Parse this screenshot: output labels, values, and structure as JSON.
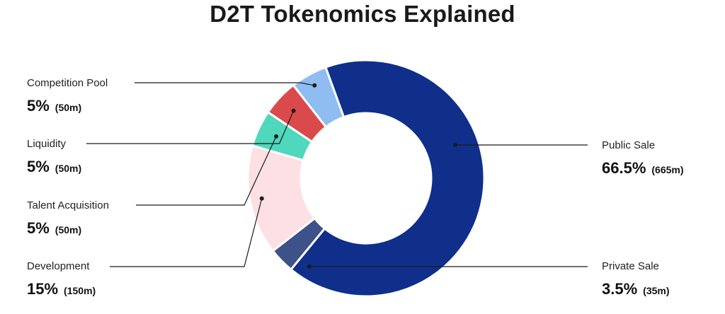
{
  "title": "D2T Tokenomics Explained",
  "chart_data": {
    "type": "pie",
    "variant": "donut",
    "title": "D2T Tokenomics Explained",
    "categories": [
      "Public Sale",
      "Private Sale",
      "Development",
      "Talent Acquisition",
      "Liquidity",
      "Competition Pool"
    ],
    "values": [
      66.5,
      3.5,
      15,
      5,
      5,
      5
    ],
    "amount_labels": [
      "665m",
      "35m",
      "150m",
      "50m",
      "50m",
      "50m"
    ],
    "percent_labels": [
      "66.5%",
      "3.5%",
      "15%",
      "5%",
      "5%",
      "5%"
    ],
    "colors": [
      "#0f2f8a",
      "#3d5289",
      "#fde0e3",
      "#4fd8bb",
      "#db4a4b",
      "#8fbdf1"
    ],
    "legend": "callouts"
  },
  "labels": [
    {
      "name": "Competition Pool",
      "pct": "5%",
      "amt": "(50m)"
    },
    {
      "name": "Liquidity",
      "pct": "5%",
      "amt": "(50m)"
    },
    {
      "name": "Talent Acquisition",
      "pct": "5%",
      "amt": "(50m)"
    },
    {
      "name": "Development",
      "pct": "15%",
      "amt": "(150m)"
    },
    {
      "name": "Public Sale",
      "pct": "66.5%",
      "amt": "(665m)"
    },
    {
      "name": "Private Sale",
      "pct": "3.5%",
      "amt": "(35m)"
    }
  ]
}
